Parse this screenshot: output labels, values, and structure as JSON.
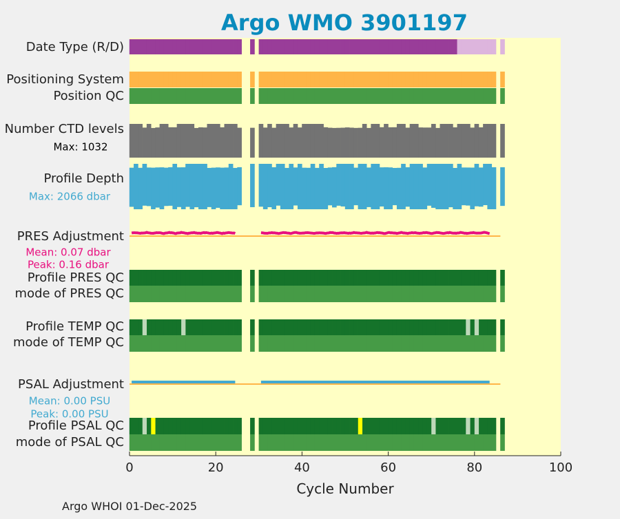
{
  "chart_data": {
    "type": "bar",
    "title": "Argo WMO 3901197",
    "xlabel": "Cycle Number",
    "xlim": [
      0,
      100
    ],
    "xticks": [
      0,
      20,
      40,
      60,
      80,
      100
    ],
    "xtick_labels": [
      "0",
      "20",
      "40",
      "60",
      "80",
      "100"
    ],
    "cycle_ranges": [
      [
        0,
        25
      ],
      [
        28,
        28
      ],
      [
        30,
        84
      ],
      [
        86,
        86
      ]
    ],
    "footer": "Argo WHOI 01-Dec-2025",
    "colors": {
      "background": "#ffffc4",
      "purple_R": "#993d99",
      "lilac_D": "#ddb5dd",
      "orange": "#ffb547",
      "qc_good_light": "#469b46",
      "qc_good_dark": "#15732a",
      "qc_probably_bad": "#bed8b9",
      "qc_bad": "#ffff00",
      "gray": "#737373",
      "blue": "#43aad0",
      "pink": "#e8107f",
      "title": "#0a8bbd",
      "text": "#222222"
    },
    "rows": [
      {
        "label": "Date Type (R/D)",
        "type": "band",
        "segments": [
          {
            "from": 0,
            "to": 75,
            "color": "purple_R"
          },
          {
            "from": 76,
            "to": 84,
            "color": "lilac_D"
          },
          {
            "from": 86,
            "to": 86,
            "color": "lilac_D"
          }
        ]
      },
      {
        "label": "Positioning System",
        "type": "band",
        "segments": [
          {
            "from": 0,
            "to": 86,
            "color": "orange"
          }
        ]
      },
      {
        "label": "Position QC",
        "type": "band",
        "segments": [
          {
            "from": 0,
            "to": 86,
            "color": "qc_good_light"
          }
        ]
      },
      {
        "label": "Number CTD levels",
        "type": "profile",
        "note": "Max: 1032",
        "max": 1032,
        "color": "gray"
      },
      {
        "label": "Profile Depth",
        "type": "profile",
        "note": "Max: 2066 dbar",
        "max": 2066,
        "color": "blue"
      },
      {
        "label": "PRES Adjustment",
        "type": "adjust",
        "notes": [
          "Mean: 0.07 dbar",
          "Peak: 0.16 dbar"
        ],
        "mean": 0.07,
        "peak": 0.16,
        "color": "pink"
      },
      {
        "label": "Profile PRES QC",
        "type": "band",
        "segments": [
          {
            "from": 0,
            "to": 86,
            "color": "qc_good_dark"
          }
        ]
      },
      {
        "label": "mode of PRES QC",
        "type": "band",
        "segments": [
          {
            "from": 0,
            "to": 86,
            "color": "qc_good_light"
          }
        ]
      },
      {
        "label": "Profile TEMP QC",
        "type": "band",
        "segments": [
          {
            "from": 0,
            "to": 86,
            "color": "qc_good_dark"
          }
        ],
        "marks": [
          {
            "cycle": 3,
            "color": "qc_probably_bad"
          },
          {
            "cycle": 12,
            "color": "qc_probably_bad"
          },
          {
            "cycle": 78,
            "color": "qc_probably_bad"
          },
          {
            "cycle": 80,
            "color": "qc_probably_bad"
          }
        ]
      },
      {
        "label": "mode of TEMP QC",
        "type": "band",
        "segments": [
          {
            "from": 0,
            "to": 86,
            "color": "qc_good_light"
          }
        ]
      },
      {
        "label": "PSAL Adjustment",
        "type": "adjust",
        "notes": [
          "Mean: 0.00 PSU",
          "Peak: 0.00 PSU"
        ],
        "mean": 0.0,
        "peak": 0.0,
        "color": "blue"
      },
      {
        "label": "Profile PSAL QC",
        "type": "band",
        "segments": [
          {
            "from": 0,
            "to": 86,
            "color": "qc_good_dark"
          }
        ],
        "marks": [
          {
            "cycle": 3,
            "color": "qc_probably_bad"
          },
          {
            "cycle": 5,
            "color": "qc_bad"
          },
          {
            "cycle": 53,
            "color": "qc_bad"
          },
          {
            "cycle": 70,
            "color": "qc_probably_bad"
          },
          {
            "cycle": 78,
            "color": "qc_probably_bad"
          },
          {
            "cycle": 80,
            "color": "qc_probably_bad"
          }
        ]
      },
      {
        "label": "mode of PSAL QC",
        "type": "band",
        "segments": [
          {
            "from": 0,
            "to": 86,
            "color": "qc_good_light"
          }
        ]
      }
    ]
  }
}
